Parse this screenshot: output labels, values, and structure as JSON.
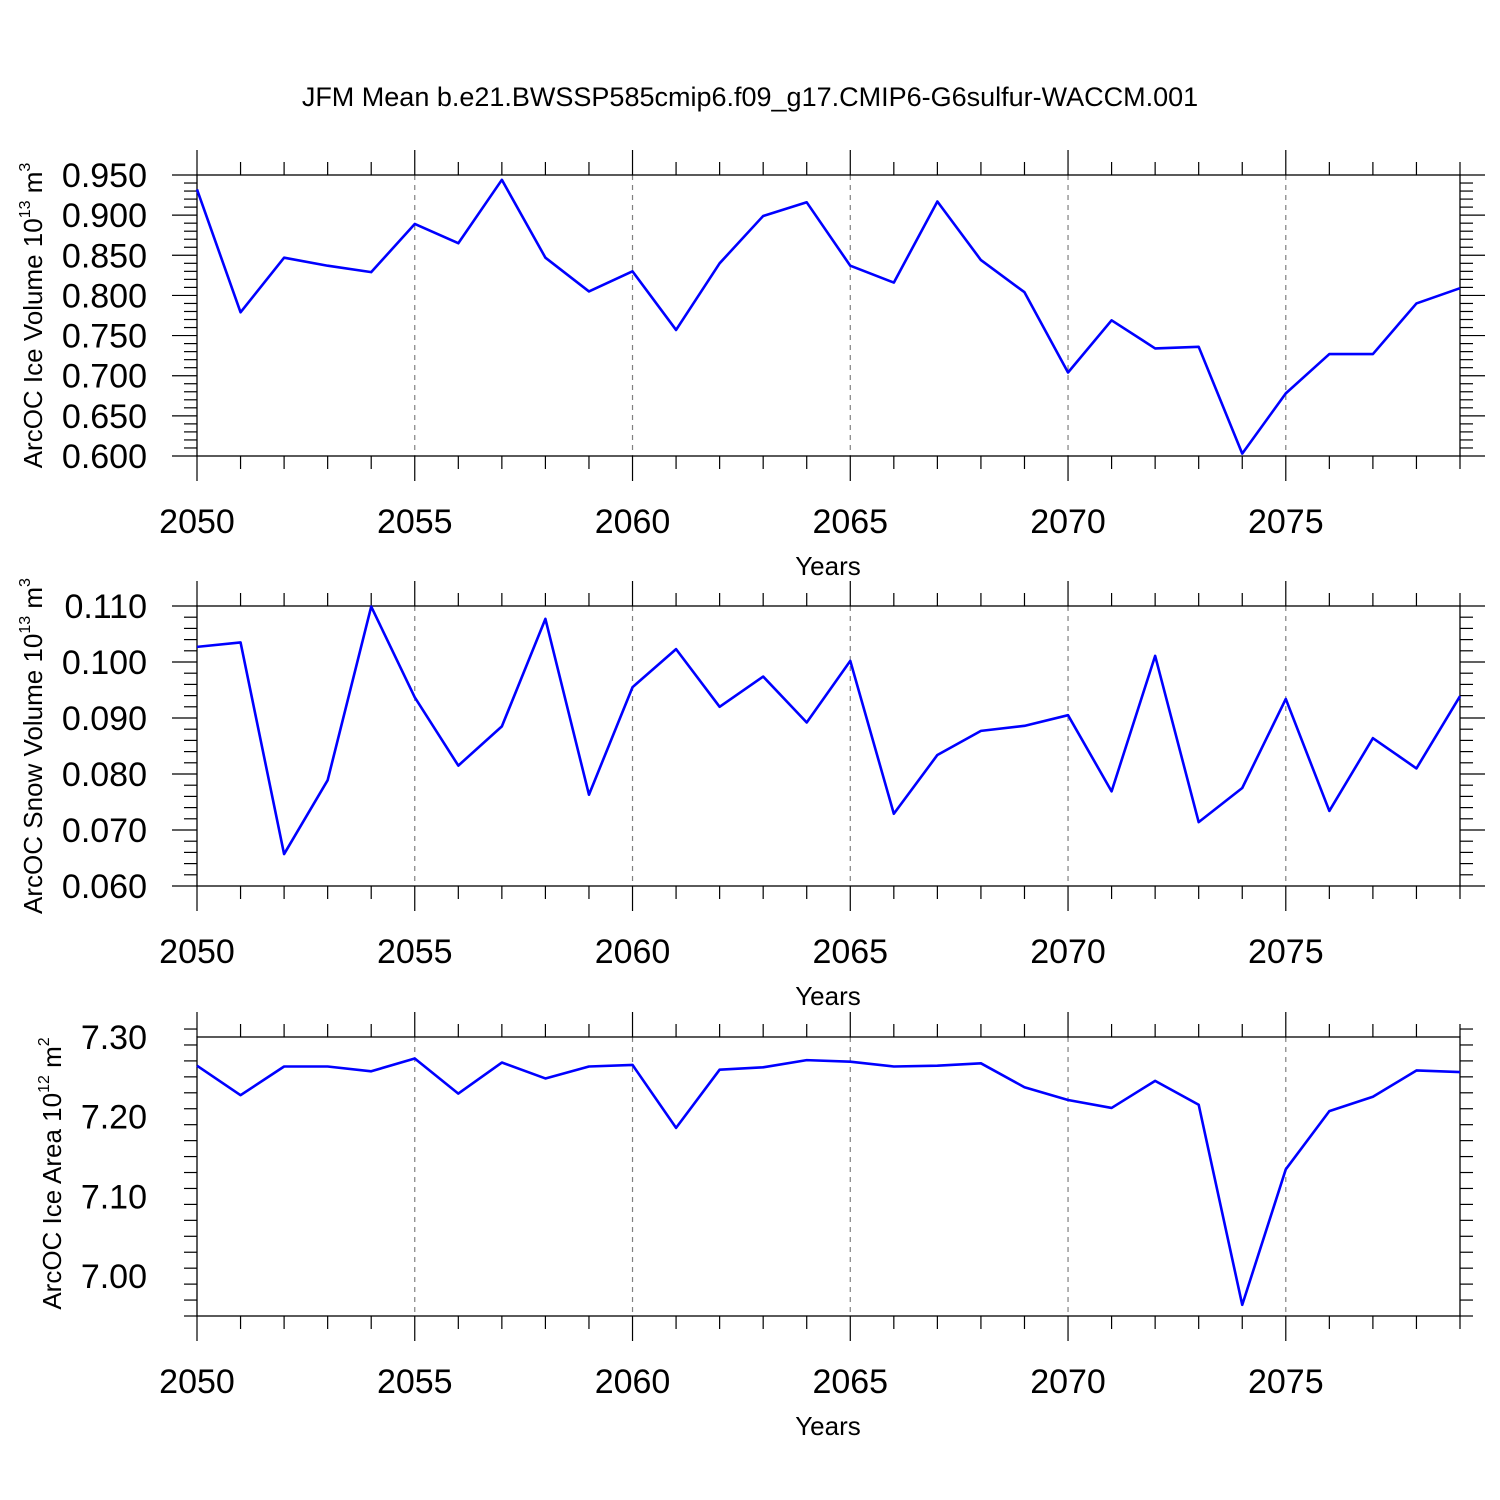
{
  "title": "JFM Mean b.e21.BWSSP585cmip6.f09_g17.CMIP6-G6sulfur-WACCM.001",
  "colors": {
    "line": "#0000ff",
    "axis": "#000000",
    "grid": "#808080"
  },
  "chart_data": [
    {
      "type": "line",
      "name": "ice-volume",
      "ylabel": "ArcOC Ice Volume",
      "ylabel_units": {
        "base": "10",
        "exp": "13",
        "unit": "m",
        "unit_exp": "3"
      },
      "xlabel": "Years",
      "xlim": [
        2050,
        2079
      ],
      "xticks": [
        2050,
        2055,
        2060,
        2065,
        2070,
        2075
      ],
      "xtick_labels": [
        "2050",
        "2055",
        "2060",
        "2065",
        "2070",
        "2075"
      ],
      "ylim": [
        0.6,
        0.95
      ],
      "yticks": [
        0.6,
        0.65,
        0.7,
        0.75,
        0.8,
        0.85,
        0.9,
        0.95
      ],
      "ytick_labels": [
        "0.600",
        "0.650",
        "0.700",
        "0.750",
        "0.800",
        "0.850",
        "0.900",
        "0.950"
      ],
      "grid": "vertical dashed at major x ticks",
      "x": [
        2050,
        2051,
        2052,
        2053,
        2054,
        2055,
        2056,
        2057,
        2058,
        2059,
        2060,
        2061,
        2062,
        2063,
        2064,
        2065,
        2066,
        2067,
        2068,
        2069,
        2070,
        2071,
        2072,
        2073,
        2074,
        2075,
        2076,
        2077,
        2078,
        2079
      ],
      "y": [
        0.932,
        0.779,
        0.847,
        0.837,
        0.829,
        0.889,
        0.865,
        0.944,
        0.847,
        0.805,
        0.83,
        0.757,
        0.84,
        0.899,
        0.916,
        0.837,
        0.816,
        0.917,
        0.844,
        0.804,
        0.704,
        0.769,
        0.734,
        0.736,
        0.603,
        0.678,
        0.727,
        0.727,
        0.79,
        0.809
      ]
    },
    {
      "type": "line",
      "name": "snow-volume",
      "ylabel": "ArcOC Snow Volume",
      "ylabel_units": {
        "base": "10",
        "exp": "13",
        "unit": "m",
        "unit_exp": "3"
      },
      "xlabel": "Years",
      "xlim": [
        2050,
        2079
      ],
      "xticks": [
        2050,
        2055,
        2060,
        2065,
        2070,
        2075
      ],
      "xtick_labels": [
        "2050",
        "2055",
        "2060",
        "2065",
        "2070",
        "2075"
      ],
      "ylim": [
        0.06,
        0.11
      ],
      "yticks": [
        0.06,
        0.07,
        0.08,
        0.09,
        0.1,
        0.11
      ],
      "ytick_labels": [
        "0.060",
        "0.070",
        "0.080",
        "0.090",
        "0.100",
        "0.110"
      ],
      "grid": "vertical dashed at major x ticks",
      "x": [
        2050,
        2051,
        2052,
        2053,
        2054,
        2055,
        2056,
        2057,
        2058,
        2059,
        2060,
        2061,
        2062,
        2063,
        2064,
        2065,
        2066,
        2067,
        2068,
        2069,
        2070,
        2071,
        2072,
        2073,
        2074,
        2075,
        2076,
        2077,
        2078,
        2079
      ],
      "y": [
        0.1027,
        0.1035,
        0.0657,
        0.0789,
        0.1099,
        0.0937,
        0.0815,
        0.0885,
        0.1077,
        0.0763,
        0.0955,
        0.1023,
        0.092,
        0.0974,
        0.0892,
        0.1002,
        0.0729,
        0.0834,
        0.0877,
        0.0886,
        0.0905,
        0.0769,
        0.1011,
        0.0714,
        0.0775,
        0.0934,
        0.0734,
        0.0864,
        0.081,
        0.0939
      ]
    },
    {
      "type": "line",
      "name": "ice-area",
      "ylabel": "ArcOC Ice Area",
      "ylabel_units": {
        "base": "10",
        "exp": "12",
        "unit": "m",
        "unit_exp": "2"
      },
      "xlabel": "Years",
      "xlim": [
        2050,
        2079
      ],
      "xticks": [
        2050,
        2055,
        2060,
        2065,
        2070,
        2075
      ],
      "xtick_labels": [
        "2050",
        "2055",
        "2060",
        "2065",
        "2070",
        "2075"
      ],
      "ylim": [
        6.95,
        7.3
      ],
      "yticks": [
        7.0,
        7.1,
        7.2,
        7.3
      ],
      "ytick_labels": [
        "7.00",
        "7.10",
        "7.20",
        "7.30"
      ],
      "grid": "vertical dashed at major x ticks",
      "x": [
        2050,
        2051,
        2052,
        2053,
        2054,
        2055,
        2056,
        2057,
        2058,
        2059,
        2060,
        2061,
        2062,
        2063,
        2064,
        2065,
        2066,
        2067,
        2068,
        2069,
        2070,
        2071,
        2072,
        2073,
        2074,
        2075,
        2076,
        2077,
        2078,
        2079
      ],
      "y": [
        7.264,
        7.227,
        7.263,
        7.263,
        7.257,
        7.273,
        7.229,
        7.268,
        7.248,
        7.263,
        7.265,
        7.186,
        7.259,
        7.262,
        7.271,
        7.269,
        7.263,
        7.264,
        7.267,
        7.237,
        7.221,
        7.211,
        7.245,
        7.215,
        6.964,
        7.134,
        7.207,
        7.225,
        7.258,
        7.256
      ]
    }
  ]
}
